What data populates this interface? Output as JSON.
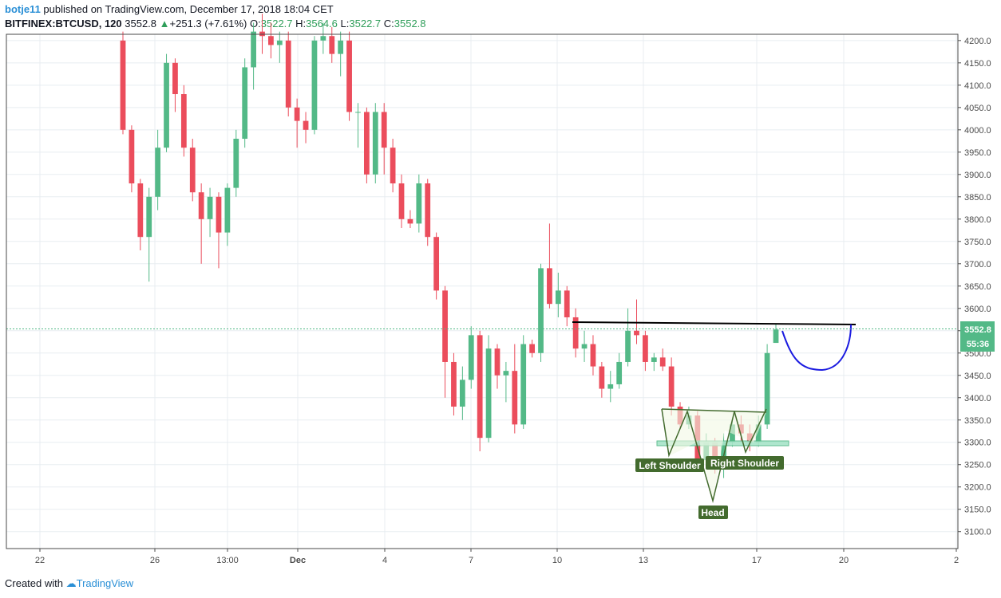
{
  "header": {
    "author": "botje11",
    "published_text": "published on TradingView.com, December 17, 2018 18:04 CET",
    "symbol": "BITFINEX:BTCUSD, 120",
    "last": "3552.8",
    "change": "+251.3 (+7.61%)",
    "open_label": "O:",
    "open": "3522.7",
    "high_label": "H:",
    "high": "3564.6",
    "low_label": "L:",
    "low": "3522.7",
    "close_label": "C:",
    "close": "3552.8"
  },
  "footer": {
    "created_with": "Created with",
    "brand": "TradingView"
  },
  "colors": {
    "up": "#53b987",
    "down": "#eb4d5c",
    "grid": "#e8edf1",
    "pattern": "#436b2e",
    "projection": "#1a1ae0",
    "neckline": "#000000",
    "price_tag": "#53b987"
  },
  "chart_data": {
    "type": "candlestick",
    "y_axis": {
      "ticks": [
        "4200.0",
        "4150.0",
        "4100.0",
        "4050.0",
        "4000.0",
        "3950.0",
        "3900.0",
        "3850.0",
        "3800.0",
        "3750.0",
        "3700.0",
        "3650.0",
        "3600.0",
        "3550.0",
        "3500.0",
        "3450.0",
        "3400.0",
        "3350.0",
        "3300.0",
        "3250.0",
        "3200.0",
        "3150.0",
        "3100.0"
      ],
      "range": [
        3062,
        4214
      ]
    },
    "x_axis": {
      "ticks": [
        "22",
        "26",
        "13:00",
        "Dec",
        "4",
        "7",
        "10",
        "13",
        "17",
        "20",
        "2"
      ]
    },
    "price_tag": {
      "value": 3552.8,
      "label": "3552.8",
      "countdown": "55:36"
    },
    "candles": [
      {
        "x": "Nov 24",
        "o": 4200,
        "h": 4220,
        "l": 3990,
        "c": 4000
      },
      {
        "x": "Nov 24",
        "o": 4000,
        "h": 4010,
        "l": 3860,
        "c": 3880
      },
      {
        "x": "Nov 25",
        "o": 3880,
        "h": 3890,
        "l": 3730,
        "c": 3760
      },
      {
        "x": "Nov 25",
        "o": 3760,
        "h": 3870,
        "l": 3660,
        "c": 3850
      },
      {
        "x": "Nov 25",
        "o": 3850,
        "h": 4000,
        "l": 3820,
        "c": 3960
      },
      {
        "x": "Nov 26",
        "o": 3960,
        "h": 4170,
        "l": 3950,
        "c": 4150
      },
      {
        "x": "Nov 26",
        "o": 4150,
        "h": 4160,
        "l": 4040,
        "c": 4080
      },
      {
        "x": "Nov 26",
        "o": 4080,
        "h": 4100,
        "l": 3940,
        "c": 3960
      },
      {
        "x": "Nov 26",
        "o": 3960,
        "h": 3980,
        "l": 3840,
        "c": 3860
      },
      {
        "x": "Nov 27",
        "o": 3860,
        "h": 3880,
        "l": 3700,
        "c": 3800
      },
      {
        "x": "Nov 27",
        "o": 3800,
        "h": 3870,
        "l": 3760,
        "c": 3850
      },
      {
        "x": "Nov 27",
        "o": 3850,
        "h": 3860,
        "l": 3690,
        "c": 3770
      },
      {
        "x": "Nov 27",
        "o": 3770,
        "h": 3880,
        "l": 3740,
        "c": 3870
      },
      {
        "x": "Nov 28",
        "o": 3870,
        "h": 4000,
        "l": 3850,
        "c": 3980
      },
      {
        "x": "Nov 28",
        "o": 3980,
        "h": 4160,
        "l": 3960,
        "c": 4140
      },
      {
        "x": "Nov 28",
        "o": 4140,
        "h": 4240,
        "l": 4090,
        "c": 4220
      },
      {
        "x": "Nov 29",
        "o": 4220,
        "h": 4260,
        "l": 4170,
        "c": 4210
      },
      {
        "x": "Nov 29",
        "o": 4210,
        "h": 4240,
        "l": 4160,
        "c": 4190
      },
      {
        "x": "Nov 29",
        "o": 4190,
        "h": 4220,
        "l": 4150,
        "c": 4200
      },
      {
        "x": "Nov 30",
        "o": 4200,
        "h": 4220,
        "l": 4030,
        "c": 4050
      },
      {
        "x": "Nov 30",
        "o": 4050,
        "h": 4070,
        "l": 3960,
        "c": 4020
      },
      {
        "x": "Nov 30",
        "o": 4020,
        "h": 4040,
        "l": 3970,
        "c": 4000
      },
      {
        "x": "Dec 1",
        "o": 4000,
        "h": 4210,
        "l": 3990,
        "c": 4200
      },
      {
        "x": "Dec 1",
        "o": 4200,
        "h": 4240,
        "l": 4170,
        "c": 4210
      },
      {
        "x": "Dec 2",
        "o": 4210,
        "h": 4230,
        "l": 4150,
        "c": 4170
      },
      {
        "x": "Dec 2",
        "o": 4170,
        "h": 4220,
        "l": 4120,
        "c": 4200
      },
      {
        "x": "Dec 2",
        "o": 4200,
        "h": 4220,
        "l": 4020,
        "c": 4040
      },
      {
        "x": "Dec 3",
        "o": 4040,
        "h": 4060,
        "l": 3960,
        "c": 4040
      },
      {
        "x": "Dec 3",
        "o": 4040,
        "h": 4050,
        "l": 3880,
        "c": 3900
      },
      {
        "x": "Dec 3",
        "o": 3900,
        "h": 4060,
        "l": 3880,
        "c": 4040
      },
      {
        "x": "Dec 4",
        "o": 4040,
        "h": 4060,
        "l": 3900,
        "c": 3960
      },
      {
        "x": "Dec 4",
        "o": 3960,
        "h": 3980,
        "l": 3860,
        "c": 3880
      },
      {
        "x": "Dec 5",
        "o": 3880,
        "h": 3900,
        "l": 3780,
        "c": 3800
      },
      {
        "x": "Dec 5",
        "o": 3800,
        "h": 3820,
        "l": 3780,
        "c": 3790
      },
      {
        "x": "Dec 5",
        "o": 3790,
        "h": 3900,
        "l": 3770,
        "c": 3880
      },
      {
        "x": "Dec 6",
        "o": 3880,
        "h": 3890,
        "l": 3740,
        "c": 3760
      },
      {
        "x": "Dec 6",
        "o": 3760,
        "h": 3770,
        "l": 3620,
        "c": 3640
      },
      {
        "x": "Dec 6",
        "o": 3640,
        "h": 3650,
        "l": 3400,
        "c": 3480
      },
      {
        "x": "Dec 7",
        "o": 3480,
        "h": 3500,
        "l": 3360,
        "c": 3380
      },
      {
        "x": "Dec 7",
        "o": 3380,
        "h": 3470,
        "l": 3350,
        "c": 3440
      },
      {
        "x": "Dec 7",
        "o": 3440,
        "h": 3560,
        "l": 3420,
        "c": 3540
      },
      {
        "x": "Dec 7",
        "o": 3540,
        "h": 3550,
        "l": 3280,
        "c": 3310
      },
      {
        "x": "Dec 8",
        "o": 3310,
        "h": 3540,
        "l": 3300,
        "c": 3510
      },
      {
        "x": "Dec 8",
        "o": 3510,
        "h": 3520,
        "l": 3420,
        "c": 3450
      },
      {
        "x": "Dec 8",
        "o": 3450,
        "h": 3480,
        "l": 3390,
        "c": 3460
      },
      {
        "x": "Dec 9",
        "o": 3460,
        "h": 3520,
        "l": 3320,
        "c": 3340
      },
      {
        "x": "Dec 9",
        "o": 3340,
        "h": 3540,
        "l": 3330,
        "c": 3520
      },
      {
        "x": "Dec 9",
        "o": 3520,
        "h": 3530,
        "l": 3490,
        "c": 3500
      },
      {
        "x": "Dec 9",
        "o": 3500,
        "h": 3700,
        "l": 3480,
        "c": 3690
      },
      {
        "x": "Dec 10",
        "o": 3690,
        "h": 3790,
        "l": 3600,
        "c": 3610
      },
      {
        "x": "Dec 10",
        "o": 3610,
        "h": 3680,
        "l": 3580,
        "c": 3640
      },
      {
        "x": "Dec 10",
        "o": 3640,
        "h": 3650,
        "l": 3560,
        "c": 3580
      },
      {
        "x": "Dec 10",
        "o": 3580,
        "h": 3600,
        "l": 3490,
        "c": 3510
      },
      {
        "x": "Dec 11",
        "o": 3510,
        "h": 3550,
        "l": 3480,
        "c": 3520
      },
      {
        "x": "Dec 11",
        "o": 3520,
        "h": 3540,
        "l": 3450,
        "c": 3470
      },
      {
        "x": "Dec 11",
        "o": 3470,
        "h": 3480,
        "l": 3400,
        "c": 3420
      },
      {
        "x": "Dec 12",
        "o": 3420,
        "h": 3460,
        "l": 3390,
        "c": 3430
      },
      {
        "x": "Dec 12",
        "o": 3430,
        "h": 3500,
        "l": 3420,
        "c": 3480
      },
      {
        "x": "Dec 12",
        "o": 3480,
        "h": 3600,
        "l": 3470,
        "c": 3550
      },
      {
        "x": "Dec 12",
        "o": 3550,
        "h": 3620,
        "l": 3520,
        "c": 3540
      },
      {
        "x": "Dec 13",
        "o": 3540,
        "h": 3550,
        "l": 3460,
        "c": 3480
      },
      {
        "x": "Dec 13",
        "o": 3480,
        "h": 3500,
        "l": 3460,
        "c": 3490
      },
      {
        "x": "Dec 13",
        "o": 3490,
        "h": 3510,
        "l": 3460,
        "c": 3470
      },
      {
        "x": "Dec 14",
        "o": 3470,
        "h": 3490,
        "l": 3360,
        "c": 3380
      },
      {
        "x": "Dec 14",
        "o": 3380,
        "h": 3390,
        "l": 3330,
        "c": 3340
      },
      {
        "x": "Dec 14",
        "o": 3340,
        "h": 3380,
        "l": 3330,
        "c": 3360
      },
      {
        "x": "Dec 15",
        "o": 3360,
        "h": 3370,
        "l": 3240,
        "c": 3260
      },
      {
        "x": "Dec 15",
        "o": 3260,
        "h": 3320,
        "l": 3250,
        "c": 3300
      },
      {
        "x": "Dec 15",
        "o": 3300,
        "h": 3310,
        "l": 3230,
        "c": 3240
      },
      {
        "x": "Dec 16",
        "o": 3240,
        "h": 3320,
        "l": 3220,
        "c": 3300
      },
      {
        "x": "Dec 16",
        "o": 3300,
        "h": 3350,
        "l": 3290,
        "c": 3340
      },
      {
        "x": "Dec 16",
        "o": 3340,
        "h": 3360,
        "l": 3300,
        "c": 3320
      },
      {
        "x": "Dec 16",
        "o": 3320,
        "h": 3340,
        "l": 3280,
        "c": 3300
      },
      {
        "x": "Dec 17",
        "o": 3300,
        "h": 3360,
        "l": 3290,
        "c": 3340
      },
      {
        "x": "Dec 17",
        "o": 3340,
        "h": 3520,
        "l": 3330,
        "c": 3500
      },
      {
        "x": "Dec 17",
        "o": 3522.7,
        "h": 3564.6,
        "l": 3522.7,
        "c": 3552.8
      }
    ],
    "neckline": {
      "from": 3565,
      "to": 3562
    },
    "pattern_labels": [
      "Left Shoulder",
      "Head",
      "Right Shoulder"
    ]
  }
}
